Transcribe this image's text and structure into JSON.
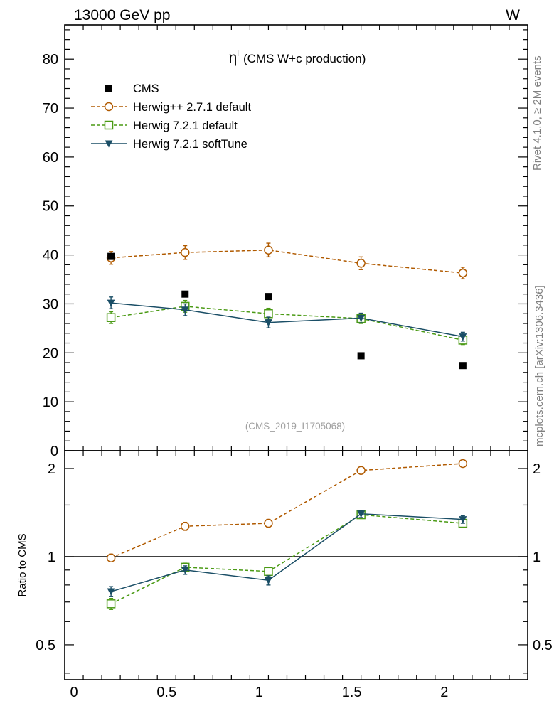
{
  "chart_data": {
    "type": "line",
    "header_left": "13000 GeV pp",
    "header_right": "W",
    "title_main": "η",
    "title_sup": "l",
    "title_rest": "(CMS W+c production)",
    "analysis_id": "(CMS_2019_I1705068)",
    "side_label_top": "Rivet 4.1.0, ≥ 2M events",
    "side_label_bottom": "mcplots.cern.ch [arXiv:1306.3436]",
    "ratio_ylabel": "Ratio to CMS",
    "xlim": [
      -0.05,
      2.45
    ],
    "ylim_main": [
      0,
      87
    ],
    "ylim_ratio": [
      0.38,
      2.3
    ],
    "x_ticks": [
      {
        "value": 0,
        "label": "0"
      },
      {
        "value": 0.5,
        "label": "0.5"
      },
      {
        "value": 1,
        "label": "1"
      },
      {
        "value": 1.5,
        "label": "1.5"
      },
      {
        "value": 2,
        "label": "2"
      }
    ],
    "main_y_ticks": [
      {
        "value": 0,
        "label": "0"
      },
      {
        "value": 10,
        "label": "10"
      },
      {
        "value": 20,
        "label": "20"
      },
      {
        "value": 30,
        "label": "30"
      },
      {
        "value": 40,
        "label": "40"
      },
      {
        "value": 50,
        "label": "50"
      },
      {
        "value": 60,
        "label": "60"
      },
      {
        "value": 70,
        "label": "70"
      },
      {
        "value": 80,
        "label": "80"
      }
    ],
    "ratio_y_ticks": [
      {
        "value": 0.5,
        "label": "0.5"
      },
      {
        "value": 1,
        "label": "1"
      },
      {
        "value": 2,
        "label": "2"
      }
    ],
    "x": [
      0.2,
      0.6,
      1.05,
      1.55,
      2.1
    ],
    "series": [
      {
        "name": "CMS",
        "style": "data",
        "color": "#000000",
        "marker": "square-filled",
        "values": [
          39.7,
          32.0,
          31.5,
          19.4,
          17.4
        ],
        "errors": [
          1.0,
          0.8,
          0.8,
          0.6,
          0.6
        ],
        "ratio": [
          1.0,
          1.0,
          1.0,
          1.0,
          1.0
        ]
      },
      {
        "name": "Herwig++ 2.7.1 default",
        "style": "dashed",
        "color": "#b05a00",
        "marker": "circle-open",
        "values": [
          39.4,
          40.5,
          41.0,
          38.3,
          36.3
        ],
        "errors": [
          1.3,
          1.4,
          1.4,
          1.3,
          1.2
        ],
        "ratio": [
          0.99,
          1.27,
          1.3,
          1.97,
          2.08
        ],
        "ratio_errors": [
          0.03,
          0.04,
          0.04,
          0.05,
          0.05
        ]
      },
      {
        "name": "Herwig 7.2.1 default",
        "style": "dashed",
        "color": "#4a9a14",
        "marker": "square-open",
        "values": [
          27.2,
          29.5,
          28.0,
          27.0,
          22.6
        ],
        "errors": [
          1.2,
          1.2,
          1.1,
          1.0,
          0.9
        ],
        "ratio": [
          0.69,
          0.92,
          0.89,
          1.39,
          1.3
        ],
        "ratio_errors": [
          0.03,
          0.03,
          0.03,
          0.04,
          0.04
        ]
      },
      {
        "name": "Herwig 7.2.1 softTune",
        "style": "solid",
        "color": "#1a4e66",
        "marker": "triangle-down-filled",
        "values": [
          30.2,
          28.8,
          26.2,
          27.1,
          23.3
        ],
        "errors": [
          1.2,
          1.2,
          1.1,
          1.0,
          0.9
        ],
        "ratio": [
          0.76,
          0.9,
          0.83,
          1.4,
          1.34
        ],
        "ratio_errors": [
          0.03,
          0.03,
          0.03,
          0.04,
          0.04
        ]
      }
    ]
  }
}
